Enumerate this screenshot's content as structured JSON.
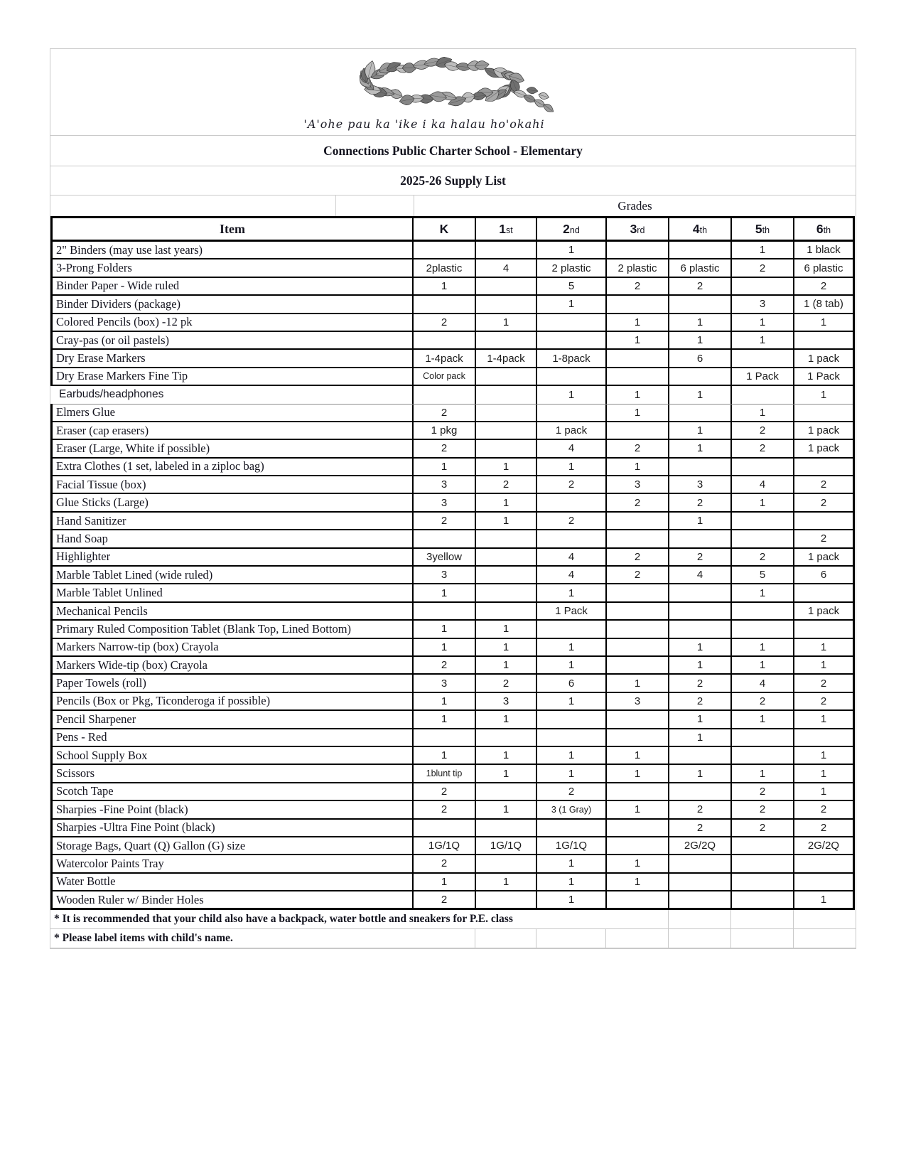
{
  "header": {
    "motto": "'A'ohe pau ka 'ike i ka halau ho'okahi",
    "school_title": "Connections Public Charter School - Elementary",
    "list_title": "2025-26  Supply List",
    "grades_label": "Grades",
    "item_column_label": "Item",
    "grade_columns": [
      {
        "label": "K",
        "suffix": ""
      },
      {
        "label": "1",
        "suffix": "st"
      },
      {
        "label": "2",
        "suffix": "nd"
      },
      {
        "label": "3",
        "suffix": "rd"
      },
      {
        "label": "4",
        "suffix": "th"
      },
      {
        "label": "5",
        "suffix": "th"
      },
      {
        "label": "6",
        "suffix": "th"
      }
    ]
  },
  "supply_table": {
    "rows": [
      {
        "item": "2\" Binders (may use last years)",
        "values": [
          "",
          "",
          "1",
          "",
          "",
          "1",
          "1 black"
        ]
      },
      {
        "item": "3-Prong Folders",
        "values": [
          "2plastic",
          "4",
          "2 plastic",
          "2 plastic",
          "6 plastic",
          "2",
          "6 plastic"
        ]
      },
      {
        "item": "Binder Paper - Wide ruled",
        "values": [
          "1",
          "",
          "5",
          "2",
          "2",
          "",
          "2"
        ]
      },
      {
        "item": "Binder Dividers (package)",
        "values": [
          "",
          "",
          "1",
          "",
          "",
          "3",
          "1 (8 tab)"
        ]
      },
      {
        "item": "Colored Pencils (box) -12 pk",
        "values": [
          "2",
          "1",
          "",
          "1",
          "1",
          "1",
          "1"
        ]
      },
      {
        "item": "Cray-pas (or oil pastels)",
        "values": [
          "",
          "",
          "",
          "1",
          "1",
          "1",
          ""
        ]
      },
      {
        "item": "Dry Erase Markers",
        "values": [
          "1-4pack",
          "1-4pack",
          "1-8pack",
          "",
          "6",
          "",
          "1 pack"
        ]
      },
      {
        "item": "Dry Erase Markers Fine Tip",
        "values": [
          "Color pack",
          "",
          "",
          "",
          "",
          "1 Pack",
          "1 Pack"
        ]
      },
      {
        "item": "Earbuds/headphones",
        "values": [
          "",
          "",
          "1",
          "1",
          "1",
          "",
          "1"
        ],
        "style_sans": true
      },
      {
        "item": "Elmers Glue",
        "values": [
          "2",
          "",
          "",
          "1",
          "",
          "1",
          ""
        ]
      },
      {
        "item": "Eraser (cap erasers)",
        "values": [
          "1 pkg",
          "",
          "1 pack",
          "",
          "1",
          "2",
          "1 pack"
        ]
      },
      {
        "item": "Eraser (Large, White if possible)",
        "values": [
          "2",
          "",
          "4",
          "2",
          "1",
          "2",
          "1 pack"
        ]
      },
      {
        "item": "Extra Clothes (1 set, labeled in a ziploc bag)",
        "values": [
          "1",
          "1",
          "1",
          "1",
          "",
          "",
          ""
        ]
      },
      {
        "item": "Facial Tissue (box)",
        "values": [
          "3",
          "2",
          "2",
          "3",
          "3",
          "4",
          "2"
        ]
      },
      {
        "item": "Glue Sticks  (Large)",
        "values": [
          "3",
          "1",
          "",
          "2",
          "2",
          "1",
          "2"
        ]
      },
      {
        "item": "Hand Sanitizer",
        "values": [
          "2",
          "1",
          "2",
          "",
          "1",
          "",
          ""
        ]
      },
      {
        "item": "Hand Soap",
        "values": [
          "",
          "",
          "",
          "",
          "",
          "",
          "2"
        ]
      },
      {
        "item": "Highlighter",
        "values": [
          "3yellow",
          "",
          "4",
          "2",
          "2",
          "2",
          "1 pack"
        ]
      },
      {
        "item": "Marble Tablet Lined (wide ruled)",
        "values": [
          "3",
          "",
          "4",
          "2",
          "4",
          "5",
          "6"
        ]
      },
      {
        "item": "Marble Tablet Unlined",
        "values": [
          "1",
          "",
          "1",
          "",
          "",
          "1",
          ""
        ]
      },
      {
        "item": "Mechanical Pencils",
        "values": [
          "",
          "",
          "1 Pack",
          "",
          "",
          "",
          "1 pack"
        ]
      },
      {
        "item": "Primary Ruled Composition Tablet (Blank Top, Lined Bottom)",
        "values": [
          "1",
          "1",
          "",
          "",
          "",
          "",
          ""
        ]
      },
      {
        "item": "Markers Narrow-tip (box) Crayola",
        "values": [
          "1",
          "1",
          "1",
          "",
          "1",
          "1",
          "1"
        ]
      },
      {
        "item": "Markers Wide-tip (box) Crayola",
        "values": [
          "2",
          "1",
          "1",
          "",
          "1",
          "1",
          "1"
        ]
      },
      {
        "item": "Paper Towels  (roll)",
        "values": [
          "3",
          "2",
          "6",
          "1",
          "2",
          "4",
          "2"
        ]
      },
      {
        "item": "Pencils (Box or Pkg, Ticonderoga if possible)",
        "values": [
          "1",
          "3",
          "1",
          "3",
          "2",
          "2",
          "2"
        ]
      },
      {
        "item": "Pencil Sharpener",
        "values": [
          "1",
          "1",
          "",
          "",
          "1",
          "1",
          "1"
        ]
      },
      {
        "item": "Pens - Red",
        "values": [
          "",
          "",
          "",
          "",
          "1",
          "",
          ""
        ]
      },
      {
        "item": "School Supply Box",
        "values": [
          "1",
          "1",
          "1",
          "1",
          "",
          "",
          "1"
        ]
      },
      {
        "item": "Scissors",
        "values": [
          "1blunt tip",
          "1",
          "1",
          "1",
          "1",
          "1",
          "1"
        ]
      },
      {
        "item": "Scotch Tape",
        "values": [
          "2",
          "",
          "2",
          "",
          "",
          "2",
          "1"
        ]
      },
      {
        "item": "Sharpies -Fine Point  (black)",
        "values": [
          "2",
          "1",
          "3 (1 Gray)",
          "1",
          "2",
          "2",
          "2"
        ]
      },
      {
        "item": "Sharpies -Ultra Fine Point  (black)",
        "values": [
          "",
          "",
          "",
          "",
          "2",
          "2",
          "2"
        ]
      },
      {
        "item": "Storage Bags, Quart (Q) Gallon (G) size",
        "values": [
          "1G/1Q",
          "1G/1Q",
          "1G/1Q",
          "",
          "2G/2Q",
          "",
          "2G/2Q"
        ]
      },
      {
        "item": "Watercolor Paints Tray",
        "values": [
          "2",
          "",
          "1",
          "1",
          "",
          "",
          ""
        ]
      },
      {
        "item": "Water Bottle",
        "values": [
          "1",
          "1",
          "1",
          "1",
          "",
          "",
          ""
        ]
      },
      {
        "item": "Wooden Ruler w/ Binder Holes",
        "values": [
          "2",
          "",
          "1",
          "",
          "",
          "",
          "1"
        ]
      }
    ]
  },
  "notes": [
    "* It is recommended that your child also have a backpack, water bottle and sneakers for P.E. class",
    "* Please label items with child's name."
  ]
}
